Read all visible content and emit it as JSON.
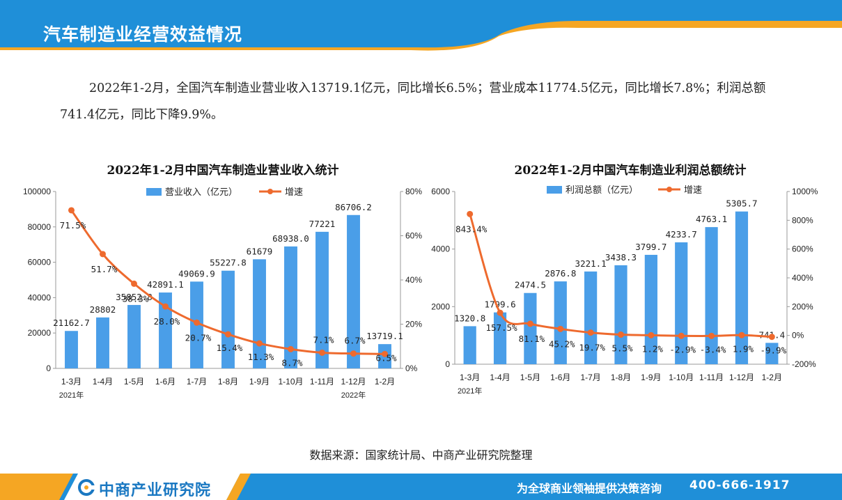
{
  "header": {
    "title": "汽车制造业经营效益情况"
  },
  "intro": {
    "text": "2022年1-2月，全国汽车制造业营业收入13719.1亿元，同比增长6.5%；营业成本11774.5亿元，同比增长7.8%；利润总额741.4亿元，同比下降9.9%。"
  },
  "source": "数据来源：国家统计局、中商产业研究院整理",
  "footer": {
    "logo": "中商产业研究院",
    "slogan": "为全球商业领袖提供决策咨询",
    "phone": "400-666-1917"
  },
  "colors": {
    "bar": "#4a9ee8",
    "line": "#ee6a2e",
    "header_blue": "#1f8fd8",
    "header_orange": "#f5a623"
  },
  "chart_data": [
    {
      "type": "bar",
      "title": "2022年1-2月中国汽车制造业营业收入统计",
      "categories": [
        "1-3月",
        "1-4月",
        "1-5月",
        "1-6月",
        "1-7月",
        "1-8月",
        "1-9月",
        "1-10月",
        "1-11月",
        "1-12月",
        "1-2月"
      ],
      "year_labels": [
        "2021年",
        "2022年"
      ],
      "series": [
        {
          "name": "营业收入（亿元）",
          "type": "bar",
          "axis": "left",
          "values": [
            21162.7,
            28802,
            35852.8,
            42891.1,
            49069.9,
            55227.8,
            61679,
            68938.0,
            77221,
            86706.2,
            13719.1
          ],
          "labels": [
            "21162.7",
            "28802",
            "35852.8",
            "42891.1",
            "49069.9",
            "55227.8",
            "61679",
            "68938.0",
            "77221",
            "86706.2",
            "13719.1"
          ]
        },
        {
          "name": "增速",
          "type": "line",
          "axis": "right",
          "values": [
            71.5,
            51.7,
            38.3,
            28.0,
            20.7,
            15.4,
            11.3,
            8.7,
            7.1,
            6.7,
            6.5
          ],
          "labels": [
            "71.5%",
            "51.7%",
            "38.3%",
            "28.0%",
            "20.7%",
            "15.4%",
            "11.3%",
            "8.7%",
            "7.1%",
            "6.7%",
            "6.5%"
          ]
        }
      ],
      "y_left": {
        "min": 0,
        "max": 100000,
        "ticks": [
          "0",
          "20000",
          "40000",
          "60000",
          "80000",
          "100000"
        ]
      },
      "y_right": {
        "min": 0,
        "max": 80,
        "ticks": [
          "0%",
          "20%",
          "40%",
          "60%",
          "80%"
        ]
      },
      "legend": "top"
    },
    {
      "type": "bar",
      "title": "2022年1-2月中国汽车制造业利润总额统计",
      "categories": [
        "1-3月",
        "1-4月",
        "1-5月",
        "1-6月",
        "1-7月",
        "1-8月",
        "1-9月",
        "1-10月",
        "1-11月",
        "1-12月",
        "1-2月"
      ],
      "year_labels": [
        "2021年"
      ],
      "series": [
        {
          "name": "利润总额（亿元）",
          "type": "bar",
          "axis": "left",
          "values": [
            1320.8,
            1799.6,
            2474.5,
            2876.8,
            3221.1,
            3438.3,
            3799.7,
            4233.7,
            4763.1,
            5305.7,
            741.4
          ],
          "labels": [
            "1320.8",
            "1799.6",
            "2474.5",
            "2876.8",
            "3221.1",
            "3438.3",
            "3799.7",
            "4233.7",
            "4763.1",
            "5305.7",
            "741.4"
          ]
        },
        {
          "name": "增速",
          "type": "line",
          "axis": "right",
          "values": [
            843.4,
            157.5,
            81.1,
            45.2,
            19.7,
            5.5,
            1.2,
            -2.9,
            -3.4,
            1.9,
            -9.9
          ],
          "labels": [
            "843.4%",
            "157.5%",
            "81.1%",
            "45.2%",
            "19.7%",
            "5.5%",
            "1.2%",
            "-2.9%",
            "-3.4%",
            "1.9%",
            "-9.9%"
          ]
        }
      ],
      "y_left": {
        "min": 0,
        "max": 6000,
        "ticks": [
          "0",
          "2000",
          "4000",
          "6000"
        ]
      },
      "y_right": {
        "min": -200,
        "max": 1000,
        "ticks": [
          "-200%",
          "0%",
          "200%",
          "400%",
          "600%",
          "800%",
          "1000%"
        ]
      },
      "legend": "top"
    }
  ]
}
